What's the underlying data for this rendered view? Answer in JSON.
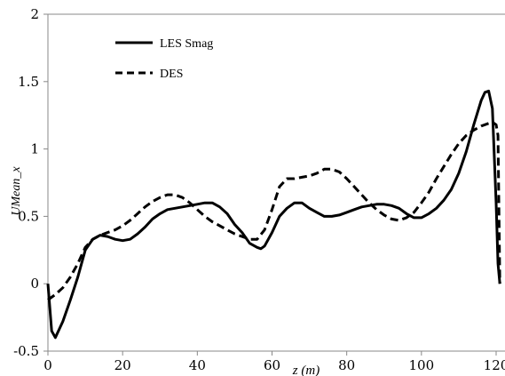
{
  "chart_data": {
    "type": "line",
    "title": "",
    "xlabel": "z (m)",
    "ylabel": "UMean_x",
    "xlim": [
      0,
      120
    ],
    "ylim": [
      -0.5,
      2
    ],
    "x_ticks": [
      "0",
      "20",
      "40",
      "60",
      "80",
      "100",
      "120"
    ],
    "y_ticks": [
      "-0.5",
      "0",
      "0.5",
      "1",
      "1.5",
      "2"
    ],
    "grid": false,
    "legend_position": "top-left",
    "series": [
      {
        "name": "LES Smag",
        "style": "solid",
        "color": "#000000",
        "x": [
          0,
          1,
          2,
          4,
          6,
          8,
          10,
          12,
          14,
          16,
          18,
          20,
          22,
          24,
          26,
          28,
          30,
          32,
          34,
          36,
          38,
          40,
          42,
          44,
          46,
          48,
          50,
          52,
          54,
          56,
          57,
          58,
          60,
          62,
          64,
          66,
          68,
          70,
          72,
          74,
          76,
          78,
          80,
          82,
          84,
          86,
          88,
          90,
          92,
          94,
          96,
          98,
          100,
          102,
          104,
          106,
          108,
          110,
          112,
          114,
          116,
          117,
          118,
          119,
          120,
          120.5,
          121
        ],
        "y": [
          0.0,
          -0.35,
          -0.4,
          -0.28,
          -0.12,
          0.05,
          0.25,
          0.33,
          0.36,
          0.35,
          0.33,
          0.32,
          0.33,
          0.37,
          0.42,
          0.48,
          0.52,
          0.55,
          0.56,
          0.57,
          0.58,
          0.59,
          0.6,
          0.6,
          0.57,
          0.52,
          0.44,
          0.38,
          0.3,
          0.27,
          0.26,
          0.28,
          0.38,
          0.5,
          0.56,
          0.6,
          0.6,
          0.56,
          0.53,
          0.5,
          0.5,
          0.51,
          0.53,
          0.55,
          0.57,
          0.58,
          0.59,
          0.59,
          0.58,
          0.56,
          0.52,
          0.49,
          0.49,
          0.52,
          0.56,
          0.62,
          0.7,
          0.82,
          0.98,
          1.18,
          1.36,
          1.42,
          1.43,
          1.3,
          0.6,
          0.15,
          0.0
        ]
      },
      {
        "name": "DES",
        "style": "dashed",
        "color": "#000000",
        "x": [
          0,
          2,
          4,
          6,
          8,
          10,
          12,
          14,
          16,
          18,
          20,
          22,
          24,
          26,
          28,
          30,
          32,
          34,
          36,
          38,
          40,
          42,
          44,
          46,
          48,
          50,
          52,
          54,
          56,
          58,
          60,
          62,
          64,
          66,
          68,
          70,
          72,
          74,
          76,
          78,
          80,
          82,
          84,
          86,
          88,
          90,
          92,
          94,
          96,
          98,
          100,
          102,
          104,
          106,
          108,
          110,
          112,
          114,
          116,
          118,
          119,
          120,
          120.5,
          121
        ],
        "y": [
          -0.12,
          -0.08,
          -0.03,
          0.05,
          0.15,
          0.27,
          0.33,
          0.36,
          0.38,
          0.4,
          0.43,
          0.47,
          0.52,
          0.57,
          0.61,
          0.64,
          0.66,
          0.66,
          0.64,
          0.6,
          0.55,
          0.5,
          0.46,
          0.43,
          0.4,
          0.37,
          0.35,
          0.33,
          0.33,
          0.4,
          0.55,
          0.72,
          0.78,
          0.78,
          0.79,
          0.8,
          0.82,
          0.85,
          0.85,
          0.83,
          0.78,
          0.72,
          0.66,
          0.6,
          0.55,
          0.51,
          0.48,
          0.47,
          0.49,
          0.53,
          0.6,
          0.68,
          0.78,
          0.87,
          0.96,
          1.04,
          1.1,
          1.14,
          1.17,
          1.19,
          1.2,
          1.18,
          1.1,
          0.0
        ]
      }
    ]
  }
}
